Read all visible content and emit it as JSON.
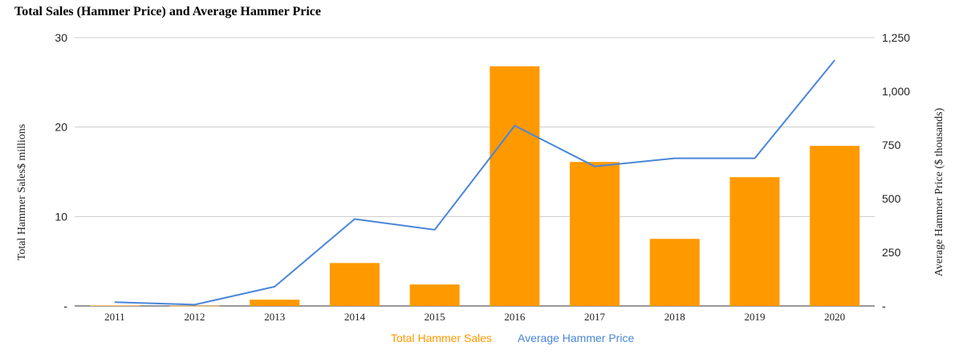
{
  "colors": {
    "bar": "#FF9900",
    "line": "#4A86D8",
    "grid": "#CCCCCC",
    "axis": "#333333"
  },
  "chart_data": {
    "type": "bar+line",
    "title": "Total Sales (Hammer Price) and Average Hammer Price",
    "categories": [
      "2011",
      "2012",
      "2013",
      "2014",
      "2015",
      "2016",
      "2017",
      "2018",
      "2019",
      "2020"
    ],
    "series": [
      {
        "name": "Total Hammer Sales",
        "type": "bar",
        "axis": "left",
        "values": [
          0.05,
          0.02,
          0.7,
          4.8,
          2.4,
          26.8,
          16.1,
          7.5,
          14.4,
          17.9
        ]
      },
      {
        "name": "Average Hammer Price",
        "type": "line",
        "axis": "right",
        "values": [
          18,
          6,
          90,
          405,
          355,
          840,
          650,
          688,
          688,
          1145
        ]
      }
    ],
    "ylabel": "Total Hammer Sales$ millions",
    "ylim": [
      0,
      30
    ],
    "yticks": [
      {
        "value": 0,
        "label": "-"
      },
      {
        "value": 10,
        "label": "10"
      },
      {
        "value": 20,
        "label": "20"
      },
      {
        "value": 30,
        "label": "30"
      }
    ],
    "y2label": "Average Hammer Price ($ thousands)",
    "y2lim": [
      0,
      1250
    ],
    "y2ticks": [
      {
        "value": 0,
        "label": "-"
      },
      {
        "value": 250,
        "label": "250"
      },
      {
        "value": 500,
        "label": "500"
      },
      {
        "value": 750,
        "label": "750"
      },
      {
        "value": 1000,
        "label": "1,000"
      },
      {
        "value": 1250,
        "label": "1,250"
      }
    ],
    "grid": true,
    "legend_position": "bottom"
  }
}
